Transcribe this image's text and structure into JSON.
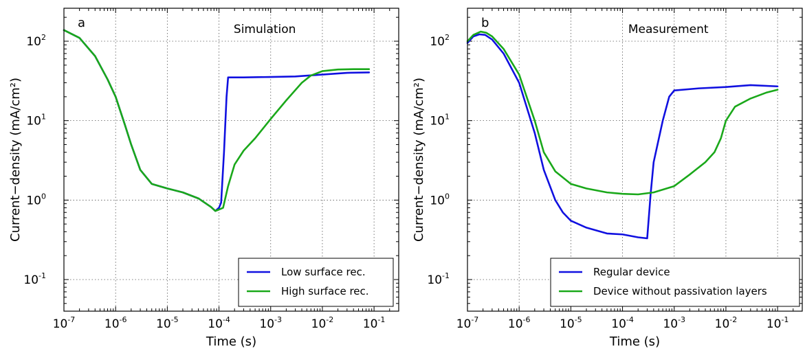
{
  "chart_data": [
    {
      "type": "line",
      "panel_letter": "a",
      "title": "Simulation",
      "xlabel": "Time (s)",
      "ylabel": "Current−density (mA/cm²)",
      "xscale": "log",
      "yscale": "log",
      "xlim": [
        1e-07,
        0.3
      ],
      "ylim": [
        0.04,
        260
      ],
      "grid": true,
      "legend_position": "bottom-right",
      "x_tick_labels": [
        {
          "value": 1e-07,
          "base": "10",
          "exp": "-7"
        },
        {
          "value": 1e-06,
          "base": "10",
          "exp": "-6"
        },
        {
          "value": 1e-05,
          "base": "10",
          "exp": "-5"
        },
        {
          "value": 0.0001,
          "base": "10",
          "exp": "-4"
        },
        {
          "value": 0.001,
          "base": "10",
          "exp": "-3"
        },
        {
          "value": 0.01,
          "base": "10",
          "exp": "-2"
        },
        {
          "value": 0.1,
          "base": "10",
          "exp": "-1"
        }
      ],
      "y_tick_labels": [
        {
          "value": 0.1,
          "base": "10",
          "exp": "-1"
        },
        {
          "value": 1,
          "base": "10",
          "exp": "0"
        },
        {
          "value": 10,
          "base": "10",
          "exp": "1"
        },
        {
          "value": 100,
          "base": "10",
          "exp": "2"
        }
      ],
      "series": [
        {
          "name": "Low surface rec.",
          "color": "#1010e0",
          "points": [
            [
              1e-07,
              138
            ],
            [
              2e-07,
              110
            ],
            [
              4e-07,
              65
            ],
            [
              7e-07,
              33
            ],
            [
              1e-06,
              20
            ],
            [
              1.5e-06,
              9
            ],
            [
              2e-06,
              5
            ],
            [
              3e-06,
              2.4
            ],
            [
              5e-06,
              1.6
            ],
            [
              1e-05,
              1.4
            ],
            [
              2e-05,
              1.25
            ],
            [
              4e-05,
              1.05
            ],
            [
              7e-05,
              0.82
            ],
            [
              8.5e-05,
              0.73
            ],
            [
              0.0001,
              0.8
            ],
            [
              0.00011,
              0.93
            ],
            [
              0.000125,
              4
            ],
            [
              0.00014,
              20
            ],
            [
              0.00015,
              35
            ],
            [
              0.0003,
              35
            ],
            [
              0.001,
              35.5
            ],
            [
              0.003,
              36
            ],
            [
              0.01,
              38
            ],
            [
              0.03,
              40
            ],
            [
              0.08,
              40.5
            ]
          ]
        },
        {
          "name": "High surface rec.",
          "color": "#1aa81a",
          "points": [
            [
              1e-07,
              138
            ],
            [
              2e-07,
              110
            ],
            [
              4e-07,
              65
            ],
            [
              7e-07,
              33
            ],
            [
              1e-06,
              20
            ],
            [
              1.5e-06,
              9
            ],
            [
              2e-06,
              5
            ],
            [
              3e-06,
              2.4
            ],
            [
              5e-06,
              1.6
            ],
            [
              1e-05,
              1.4
            ],
            [
              2e-05,
              1.25
            ],
            [
              4e-05,
              1.05
            ],
            [
              7e-05,
              0.82
            ],
            [
              8.5e-05,
              0.73
            ],
            [
              0.0001,
              0.76
            ],
            [
              0.00012,
              0.8
            ],
            [
              0.00015,
              1.5
            ],
            [
              0.0002,
              2.8
            ],
            [
              0.0003,
              4.2
            ],
            [
              0.0005,
              6
            ],
            [
              0.001,
              10.5
            ],
            [
              0.002,
              18
            ],
            [
              0.004,
              30
            ],
            [
              0.006,
              37
            ],
            [
              0.01,
              42
            ],
            [
              0.02,
              44
            ],
            [
              0.04,
              44.5
            ],
            [
              0.08,
              44.5
            ]
          ]
        }
      ]
    },
    {
      "type": "line",
      "panel_letter": "b",
      "title": "Measurement",
      "xlabel": "Time (s)",
      "ylabel": "Current−density (mA/cm²)",
      "xscale": "log",
      "yscale": "log",
      "xlim": [
        1e-07,
        0.3
      ],
      "ylim": [
        0.04,
        260
      ],
      "grid": true,
      "legend_position": "bottom-right",
      "x_tick_labels": [
        {
          "value": 1e-07,
          "base": "10",
          "exp": "-7"
        },
        {
          "value": 1e-06,
          "base": "10",
          "exp": "-6"
        },
        {
          "value": 1e-05,
          "base": "10",
          "exp": "-5"
        },
        {
          "value": 0.0001,
          "base": "10",
          "exp": "-4"
        },
        {
          "value": 0.001,
          "base": "10",
          "exp": "-3"
        },
        {
          "value": 0.01,
          "base": "10",
          "exp": "-2"
        },
        {
          "value": 0.1,
          "base": "10",
          "exp": "-1"
        }
      ],
      "y_tick_labels": [
        {
          "value": 0.1,
          "base": "10",
          "exp": "-1"
        },
        {
          "value": 1,
          "base": "10",
          "exp": "0"
        },
        {
          "value": 10,
          "base": "10",
          "exp": "1"
        },
        {
          "value": 100,
          "base": "10",
          "exp": "2"
        }
      ],
      "series": [
        {
          "name": "Regular device",
          "color": "#1010e0",
          "points": [
            [
              1e-07,
              95
            ],
            [
              1.3e-07,
              115
            ],
            [
              1.7e-07,
              122
            ],
            [
              2.2e-07,
              120
            ],
            [
              3e-07,
              105
            ],
            [
              5e-07,
              70
            ],
            [
              1e-06,
              30
            ],
            [
              2e-06,
              7
            ],
            [
              3e-06,
              2.4
            ],
            [
              5e-06,
              1
            ],
            [
              7e-06,
              0.7
            ],
            [
              1e-05,
              0.55
            ],
            [
              2e-05,
              0.45
            ],
            [
              5e-05,
              0.38
            ],
            [
              0.0001,
              0.37
            ],
            [
              0.0002,
              0.34
            ],
            [
              0.0003,
              0.33
            ],
            [
              0.00035,
              1.2
            ],
            [
              0.0004,
              3
            ],
            [
              0.0006,
              10
            ],
            [
              0.0008,
              20
            ],
            [
              0.001,
              24
            ],
            [
              0.003,
              25.5
            ],
            [
              0.01,
              26.5
            ],
            [
              0.03,
              28
            ],
            [
              0.1,
              27
            ]
          ]
        },
        {
          "name": "Device without passivation layers",
          "color": "#1aa81a",
          "points": [
            [
              1e-07,
              100
            ],
            [
              1.3e-07,
              120
            ],
            [
              1.8e-07,
              132
            ],
            [
              2.3e-07,
              128
            ],
            [
              3e-07,
              115
            ],
            [
              5e-07,
              80
            ],
            [
              1e-06,
              38
            ],
            [
              2e-06,
              10
            ],
            [
              3e-06,
              4
            ],
            [
              5e-06,
              2.3
            ],
            [
              1e-05,
              1.6
            ],
            [
              2e-05,
              1.4
            ],
            [
              5e-05,
              1.25
            ],
            [
              0.0001,
              1.2
            ],
            [
              0.0002,
              1.18
            ],
            [
              0.0004,
              1.25
            ],
            [
              0.001,
              1.5
            ],
            [
              0.002,
              2.1
            ],
            [
              0.004,
              3
            ],
            [
              0.006,
              4
            ],
            [
              0.008,
              6
            ],
            [
              0.01,
              10
            ],
            [
              0.015,
              15
            ],
            [
              0.03,
              19
            ],
            [
              0.06,
              22.5
            ],
            [
              0.1,
              24.5
            ]
          ]
        }
      ]
    }
  ]
}
